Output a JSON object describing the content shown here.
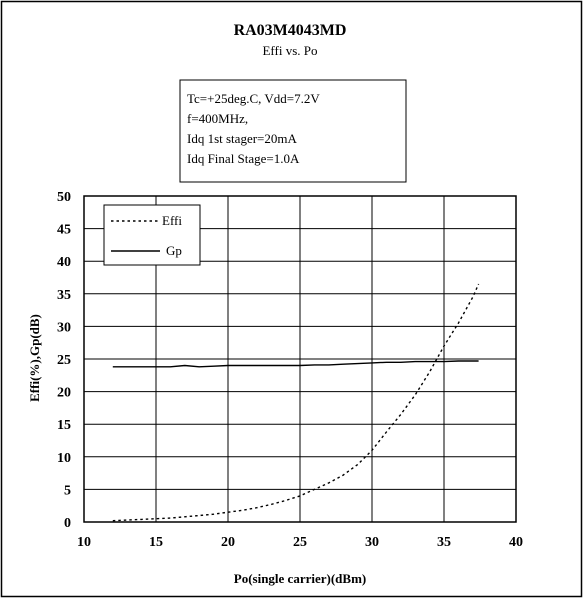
{
  "chart_data": {
    "type": "line",
    "title": "RA03M4043MD",
    "subtitle": "Effi vs. Po",
    "conditions": [
      "Tc=+25deg.C, Vdd=7.2V",
      "f=400MHz,",
      "Idq 1st stager=20mA",
      "Idq Final Stage=1.0A"
    ],
    "xlabel": "Po(single carrier)(dBm)",
    "ylabel": "Effi(%),Gp(dB)",
    "xlim": [
      10,
      40
    ],
    "ylim": [
      0,
      50
    ],
    "xticks": [
      10,
      15,
      20,
      25,
      30,
      35,
      40
    ],
    "yticks": [
      0,
      5,
      10,
      15,
      20,
      25,
      30,
      35,
      40,
      45,
      50
    ],
    "grid": true,
    "legend_position": "top-left",
    "series": [
      {
        "name": "Effi",
        "style": "dotted",
        "color": "#000000",
        "x": [
          12,
          13,
          14,
          15,
          16,
          17,
          18,
          19,
          20,
          21,
          22,
          23,
          24,
          25,
          26,
          27,
          28,
          29,
          30,
          31,
          32,
          33,
          34,
          35,
          36,
          37,
          37.4
        ],
        "y": [
          0.2,
          0.3,
          0.4,
          0.5,
          0.6,
          0.8,
          1.0,
          1.2,
          1.5,
          1.8,
          2.2,
          2.7,
          3.3,
          4.0,
          5.0,
          6.0,
          7.2,
          8.8,
          11.0,
          13.8,
          16.5,
          19.5,
          23.0,
          27.0,
          30.5,
          34.5,
          36.5
        ]
      },
      {
        "name": "Gp",
        "style": "solid",
        "color": "#000000",
        "x": [
          12,
          13,
          14,
          15,
          16,
          17,
          18,
          19,
          20,
          21,
          22,
          23,
          24,
          25,
          26,
          27,
          28,
          29,
          30,
          31,
          32,
          33,
          34,
          35,
          36,
          37,
          37.4
        ],
        "y": [
          23.8,
          23.8,
          23.8,
          23.8,
          23.8,
          24.0,
          23.8,
          23.9,
          24.0,
          24.0,
          24.0,
          24.0,
          24.0,
          24.0,
          24.1,
          24.1,
          24.2,
          24.3,
          24.4,
          24.5,
          24.5,
          24.6,
          24.6,
          24.6,
          24.7,
          24.7,
          24.7
        ]
      }
    ]
  }
}
